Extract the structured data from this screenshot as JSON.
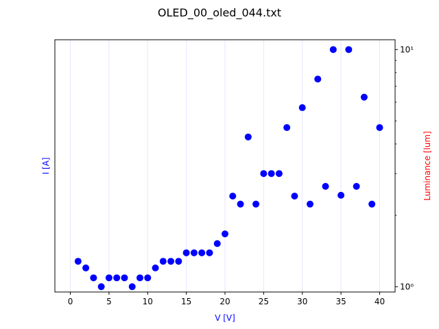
{
  "chart_data": {
    "type": "scatter",
    "title": "OLED_00_oled_044.txt",
    "xlabel": "V [V]",
    "ylabel_left": "I [A]",
    "ylabel_right": "Luminance [lum]",
    "xlabel_color": "#0000ff",
    "ylabel_left_color": "#0000ff",
    "ylabel_right_color": "#ff0000",
    "marker_color": "#0000ff",
    "grid_color": "#e6e6ff",
    "xlim": [
      -2,
      42
    ],
    "ylim_right": [
      0.95,
      11.0
    ],
    "right_scale": "log",
    "grid": "vertical",
    "x_ticks": [
      0,
      5,
      10,
      15,
      20,
      25,
      30,
      35,
      40
    ],
    "x_tick_labels": [
      "0",
      "5",
      "10",
      "15",
      "20",
      "25",
      "30",
      "35",
      "40"
    ],
    "y_right_ticks": [
      1,
      10
    ],
    "y_right_tick_labels": [
      "10⁰",
      "10¹"
    ],
    "series": [
      {
        "x": [
          1,
          2,
          3,
          4,
          5,
          6,
          7,
          8,
          9,
          10,
          11,
          12,
          13,
          14,
          15,
          16,
          17,
          18,
          19,
          20,
          21,
          22,
          23,
          24,
          25,
          26,
          27,
          28,
          29,
          30,
          31,
          32,
          33,
          34,
          35,
          36,
          37,
          38,
          39,
          40
        ],
        "y": [
          1.28,
          1.2,
          1.09,
          1.0,
          1.09,
          1.09,
          1.09,
          1.0,
          1.09,
          1.09,
          1.2,
          1.28,
          1.28,
          1.28,
          1.39,
          1.39,
          1.39,
          1.39,
          1.52,
          1.67,
          2.41,
          2.23,
          4.28,
          2.23,
          3.0,
          3.0,
          3.0,
          4.69,
          2.41,
          5.69,
          2.23,
          7.51,
          2.65,
          10.0,
          2.43,
          10.0,
          2.65,
          6.3,
          2.23,
          4.69
        ]
      }
    ]
  }
}
